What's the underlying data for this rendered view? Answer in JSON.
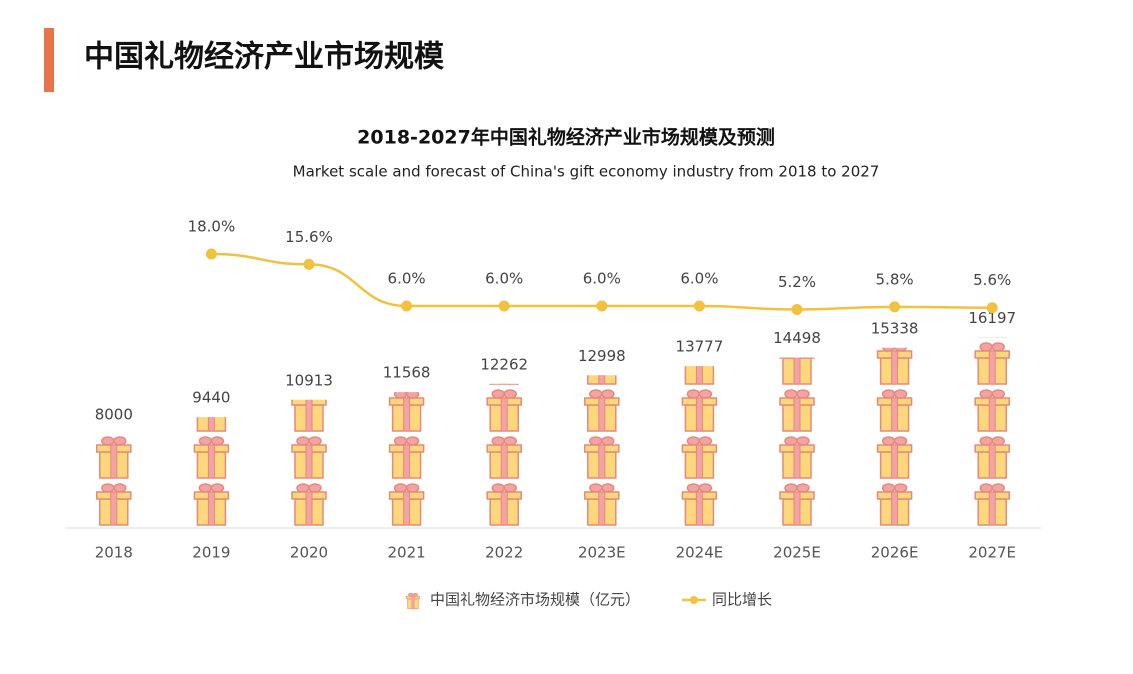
{
  "header": {
    "title": "中国礼物经济产业市场规模"
  },
  "chart_data": {
    "type": "combo",
    "title": "2018-2027年中国礼物经济产业市场规模及预测",
    "subtitle": "Market scale and forecast of China's gift economy industry from 2018 to 2027",
    "categories": [
      "2018",
      "2019",
      "2020",
      "2021",
      "2022",
      "2023E",
      "2024E",
      "2025E",
      "2026E",
      "2027E"
    ],
    "series": [
      {
        "name": "中国礼物经济市场规模（亿元）",
        "type": "pictorial-bar",
        "color": "#fdd77c",
        "values": [
          8000,
          9440,
          10913,
          11568,
          12262,
          12998,
          13777,
          14498,
          15338,
          16197
        ]
      },
      {
        "name": "同比增长",
        "type": "line",
        "axis": "y2",
        "color": "#f2c23e",
        "values": [
          null,
          18.0,
          15.6,
          6.0,
          6.0,
          6.0,
          6.0,
          5.2,
          5.8,
          5.6
        ],
        "value_labels": [
          null,
          "18.0%",
          "15.6%",
          "6.0%",
          "6.0%",
          "6.0%",
          "6.0%",
          "5.2%",
          "5.8%",
          "5.6%"
        ]
      }
    ],
    "ylim": [
      0,
      20000
    ],
    "y2lim": [
      0,
      20
    ],
    "legend": "bottom"
  }
}
